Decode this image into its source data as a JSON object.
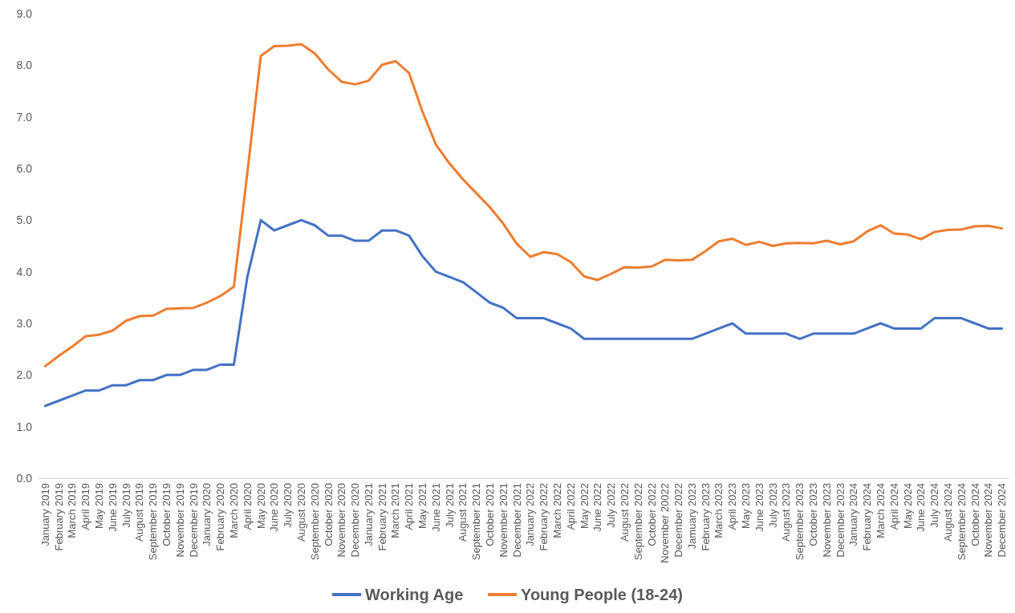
{
  "chart_data": {
    "type": "line",
    "categories": [
      "January 2019",
      "February 2019",
      "March 2019",
      "April 2019",
      "May 2019",
      "June 2019",
      "July 2019",
      "August 2019",
      "September 2019",
      "October 2019",
      "November 2019",
      "December 2019",
      "January 2020",
      "February 2020",
      "March 2020",
      "April 2020",
      "May 2020",
      "June 2020",
      "July 2020",
      "August 2020",
      "September 2020",
      "October 2020",
      "November 2020",
      "December 2020",
      "January 2021",
      "February 2021",
      "March 2021",
      "April 2021",
      "May 2021",
      "June 2021",
      "July 2021",
      "August 2021",
      "September 2021",
      "October 2021",
      "November 2021",
      "December 2021",
      "January 2022",
      "February 2022",
      "March 2022",
      "April 2022",
      "May 2022",
      "June 2022",
      "July 2022",
      "August 2022",
      "September 2022",
      "October 2022",
      "November 20022",
      "December 2022",
      "Jamuary 2023",
      "February 2023",
      "March 2023",
      "April 2023",
      "May 2023",
      "June 2023",
      "July 2023",
      "August 2023",
      "September 2023",
      "October 2023",
      "November 2023",
      "December 2023",
      "January 2024",
      "February 2024",
      "March 2024",
      "April 2024",
      "May 2024",
      "June 2024",
      "July 2024",
      "August 2024",
      "September 2024",
      "October 2024",
      "November 2024",
      "December 2024"
    ],
    "series": [
      {
        "name": "Working Age",
        "color": "#4472c4",
        "values": [
          1.4,
          1.5,
          1.6,
          1.7,
          1.7,
          1.8,
          1.8,
          1.9,
          1.9,
          2.0,
          2.0,
          2.1,
          2.1,
          2.2,
          2.2,
          3.9,
          5.0,
          4.8,
          4.9,
          5.0,
          4.9,
          4.7,
          4.7,
          4.6,
          4.6,
          4.8,
          4.8,
          4.7,
          4.3,
          4.0,
          3.9,
          3.8,
          3.6,
          3.4,
          3.3,
          3.1,
          3.1,
          3.1,
          3.0,
          2.9,
          2.7,
          2.7,
          2.7,
          2.7,
          2.7,
          2.7,
          2.7,
          2.7,
          2.7,
          2.8,
          2.9,
          3.0,
          2.8,
          2.8,
          2.8,
          2.8,
          2.7,
          2.8,
          2.8,
          2.8,
          2.8,
          2.9,
          3.0,
          2.9,
          2.9,
          2.9,
          3.1,
          3.1,
          3.1,
          3.0,
          2.9,
          2.9
        ]
      },
      {
        "name": "Young People (18-24)",
        "color": "#ed7d31",
        "values": [
          2.17,
          2.37,
          2.55,
          2.75,
          2.78,
          2.86,
          3.05,
          3.14,
          3.15,
          3.28,
          3.29,
          3.3,
          3.4,
          3.53,
          3.71,
          5.92,
          8.18,
          8.37,
          8.38,
          8.41,
          8.23,
          7.92,
          7.68,
          7.63,
          7.7,
          8.01,
          8.08,
          7.85,
          7.1,
          6.46,
          6.1,
          5.79,
          5.52,
          5.25,
          4.93,
          4.54,
          4.29,
          4.38,
          4.34,
          4.19,
          3.91,
          3.84,
          3.96,
          4.09,
          4.08,
          4.1,
          4.23,
          4.22,
          4.23,
          4.4,
          4.59,
          4.64,
          4.52,
          4.58,
          4.5,
          4.55,
          4.56,
          4.55,
          4.6,
          4.53,
          4.59,
          4.78,
          4.9,
          4.74,
          4.72,
          4.63,
          4.77,
          4.81,
          4.82,
          4.88,
          4.89,
          4.84
        ]
      }
    ],
    "ylim": [
      0,
      9
    ],
    "yticks": [
      {
        "value": 0,
        "label": "0.0"
      },
      {
        "value": 1,
        "label": "1.0"
      },
      {
        "value": 2,
        "label": "2.0"
      },
      {
        "value": 3,
        "label": "3.0"
      },
      {
        "value": 4,
        "label": "4.0"
      },
      {
        "value": 5,
        "label": "5.0"
      },
      {
        "value": 6,
        "label": "6.0"
      },
      {
        "value": 7,
        "label": "7.0"
      },
      {
        "value": 8,
        "label": "8.0"
      },
      {
        "value": 9,
        "label": "9.0"
      }
    ],
    "grid": false,
    "legend": "bottom",
    "marker": "none",
    "line_style": "solid"
  }
}
